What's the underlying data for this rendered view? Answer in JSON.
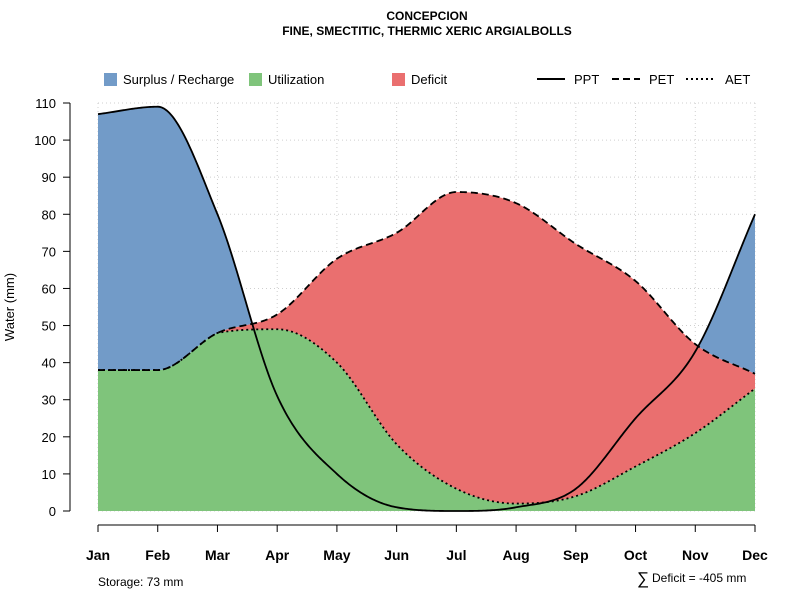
{
  "chart_data": {
    "type": "area",
    "title": "CONCEPCION",
    "subtitle": "FINE, SMECTITIC, THERMIC XERIC ARGIALBOLLS",
    "ylabel": "Water (mm)",
    "xlabel": "",
    "ylim": [
      0,
      110
    ],
    "yticks": [
      0,
      10,
      20,
      30,
      40,
      50,
      60,
      70,
      80,
      90,
      100,
      110
    ],
    "grid": true,
    "categories": [
      "Jan",
      "Feb",
      "Mar",
      "Apr",
      "May",
      "Jun",
      "Jul",
      "Aug",
      "Sep",
      "Oct",
      "Nov",
      "Dec"
    ],
    "series": [
      {
        "name": "PPT",
        "values": [
          107,
          109,
          80,
          31,
          10,
          1,
          0,
          1,
          6,
          25,
          43,
          80
        ]
      },
      {
        "name": "PET",
        "values": [
          38,
          38,
          48,
          53,
          68,
          75,
          86,
          83,
          72,
          62,
          45,
          37
        ]
      },
      {
        "name": "AET",
        "values": [
          38,
          38,
          48,
          49,
          40,
          18,
          6,
          2,
          4,
          12,
          21,
          33
        ]
      }
    ],
    "legend": {
      "fills": [
        {
          "label": "Surplus / Recharge",
          "color": "#729BC8"
        },
        {
          "label": "Utilization",
          "color": "#7FC47B"
        },
        {
          "label": "Deficit",
          "color": "#EA6F6F"
        }
      ],
      "lines": [
        {
          "label": "PPT",
          "style": "solid"
        },
        {
          "label": "PET",
          "style": "dashed"
        },
        {
          "label": "AET",
          "style": "dotted"
        }
      ],
      "position": "top"
    },
    "footnotes": {
      "storage": "Storage: 73 mm",
      "deficit_symbol": "∑",
      "deficit": "Deficit = -405 mm"
    }
  }
}
